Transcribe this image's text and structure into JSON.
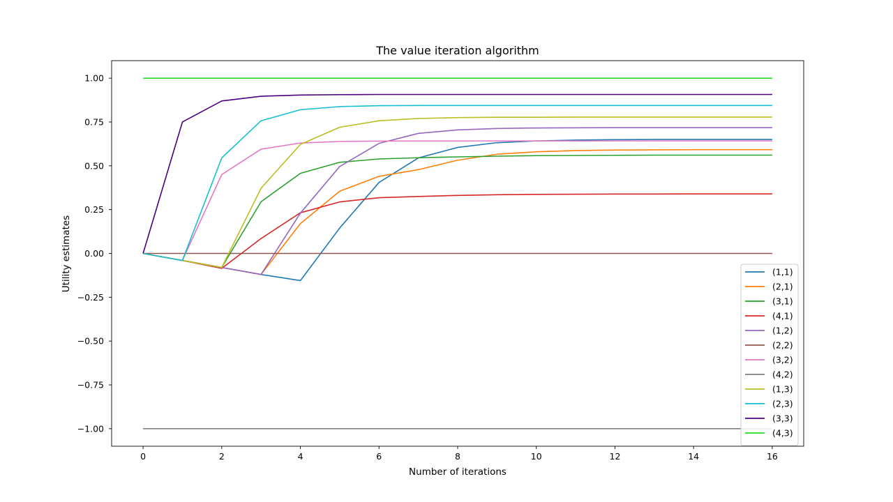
{
  "chart_data": {
    "type": "line",
    "title": "The value iteration algorithm",
    "xlabel": "Number of iterations",
    "ylabel": "Utility estimates",
    "xlim": [
      -0.8,
      16.8
    ],
    "ylim": [
      -1.1,
      1.1
    ],
    "xticks": [
      0,
      2,
      4,
      6,
      8,
      10,
      12,
      14,
      16
    ],
    "yticks": [
      -1.0,
      -0.75,
      -0.5,
      -0.25,
      0.0,
      0.25,
      0.5,
      0.75,
      1.0
    ],
    "xtick_labels": [
      "0",
      "2",
      "4",
      "6",
      "8",
      "10",
      "12",
      "14",
      "16"
    ],
    "ytick_labels": [
      "−1.00",
      "−0.75",
      "−0.50",
      "−0.25",
      "0.00",
      "0.25",
      "0.50",
      "0.75",
      "1.00"
    ],
    "grid": false,
    "legend_position": "lower-right",
    "x": [
      0,
      1,
      2,
      3,
      4,
      5,
      6,
      7,
      8,
      9,
      10,
      11,
      12,
      13,
      14,
      15,
      16
    ],
    "series": [
      {
        "name": "(1,1)",
        "color": "#1f77b4",
        "values": [
          0,
          -0.04,
          -0.08,
          -0.12,
          -0.155,
          0.145,
          0.405,
          0.545,
          0.605,
          0.632,
          0.642,
          0.647,
          0.649,
          0.65,
          0.65,
          0.65,
          0.65
        ]
      },
      {
        "name": "(2,1)",
        "color": "#ff7f0e",
        "values": [
          0,
          -0.04,
          -0.08,
          -0.12,
          0.17,
          0.355,
          0.44,
          0.478,
          0.532,
          0.566,
          0.58,
          0.587,
          0.59,
          0.591,
          0.592,
          0.592,
          0.592
        ]
      },
      {
        "name": "(3,1)",
        "color": "#2ca02c",
        "values": [
          0,
          -0.04,
          -0.08,
          0.295,
          0.457,
          0.52,
          0.539,
          0.546,
          0.551,
          0.555,
          0.558,
          0.559,
          0.56,
          0.561,
          0.561,
          0.561,
          0.561
        ]
      },
      {
        "name": "(4,1)",
        "color": "#d62728",
        "values": [
          0,
          -0.04,
          -0.085,
          0.085,
          0.232,
          0.294,
          0.318,
          0.325,
          0.331,
          0.335,
          0.337,
          0.338,
          0.339,
          0.339,
          0.34,
          0.34,
          0.34
        ]
      },
      {
        "name": "(1,2)",
        "color": "#9467bd",
        "values": [
          0,
          -0.04,
          -0.08,
          -0.12,
          0.23,
          0.496,
          0.628,
          0.685,
          0.705,
          0.713,
          0.716,
          0.717,
          0.718,
          0.718,
          0.718,
          0.718,
          0.718
        ]
      },
      {
        "name": "(2,2)",
        "color": "#8c564b",
        "values": [
          0,
          0,
          0,
          0,
          0,
          0,
          0,
          0,
          0,
          0,
          0,
          0,
          0,
          0,
          0,
          0,
          0
        ]
      },
      {
        "name": "(3,2)",
        "color": "#e377c2",
        "values": [
          0,
          -0.04,
          0.45,
          0.595,
          0.63,
          0.639,
          0.641,
          0.642,
          0.642,
          0.642,
          0.642,
          0.642,
          0.642,
          0.642,
          0.642,
          0.642,
          0.642
        ]
      },
      {
        "name": "(4,2)",
        "color": "#7f7f7f",
        "values": [
          -1,
          -1,
          -1,
          -1,
          -1,
          -1,
          -1,
          -1,
          -1,
          -1,
          -1,
          -1,
          -1,
          -1,
          -1,
          -1,
          -1
        ]
      },
      {
        "name": "(1,3)",
        "color": "#bcbd22",
        "values": [
          0,
          -0.04,
          -0.08,
          0.372,
          0.622,
          0.72,
          0.757,
          0.77,
          0.775,
          0.777,
          0.777,
          0.778,
          0.778,
          0.778,
          0.778,
          0.778,
          0.778
        ]
      },
      {
        "name": "(2,3)",
        "color": "#17becf",
        "values": [
          0,
          -0.04,
          0.545,
          0.757,
          0.82,
          0.838,
          0.843,
          0.844,
          0.844,
          0.844,
          0.844,
          0.844,
          0.844,
          0.844,
          0.844,
          0.844,
          0.844
        ]
      },
      {
        "name": "(3,3)",
        "color": "#4b0082",
        "values": [
          0,
          0.75,
          0.87,
          0.897,
          0.904,
          0.906,
          0.907,
          0.907,
          0.907,
          0.907,
          0.907,
          0.907,
          0.907,
          0.907,
          0.907,
          0.907,
          0.907
        ]
      },
      {
        "name": "(4,3)",
        "color": "#22dd22",
        "values": [
          1,
          1,
          1,
          1,
          1,
          1,
          1,
          1,
          1,
          1,
          1,
          1,
          1,
          1,
          1,
          1,
          1
        ]
      }
    ]
  }
}
